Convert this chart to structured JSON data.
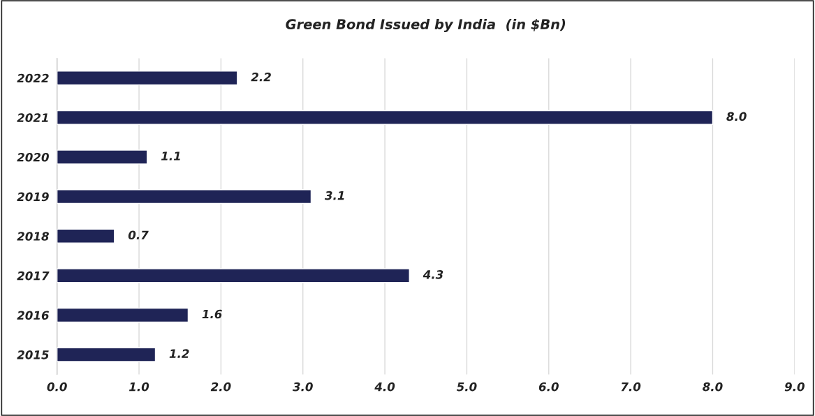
{
  "chart_data": {
    "type": "bar",
    "orientation": "horizontal",
    "title": "Green Bond Issued by India  (in $Bn)",
    "categories": [
      "2022",
      "2021",
      "2020",
      "2019",
      "2018",
      "2017",
      "2016",
      "2015"
    ],
    "values": [
      2.2,
      8.0,
      1.1,
      3.1,
      0.7,
      4.3,
      1.6,
      1.2
    ],
    "value_labels": [
      "2.2",
      "8.0",
      "1.1",
      "3.1",
      "0.7",
      "4.3",
      "1.6",
      "1.2"
    ],
    "color": "#1f2456",
    "xlim": [
      0,
      9
    ],
    "xticks": [
      {
        "value": 0,
        "label": "0.0"
      },
      {
        "value": 1,
        "label": "1.0"
      },
      {
        "value": 2,
        "label": "2.0"
      },
      {
        "value": 3,
        "label": "3.0"
      },
      {
        "value": 4,
        "label": "4.0"
      },
      {
        "value": 5,
        "label": "5.0"
      },
      {
        "value": 6,
        "label": "6.0"
      },
      {
        "value": 7,
        "label": "7.0"
      },
      {
        "value": 8,
        "label": "8.0"
      },
      {
        "value": 9,
        "label": "9.0"
      }
    ],
    "grid": "x"
  }
}
